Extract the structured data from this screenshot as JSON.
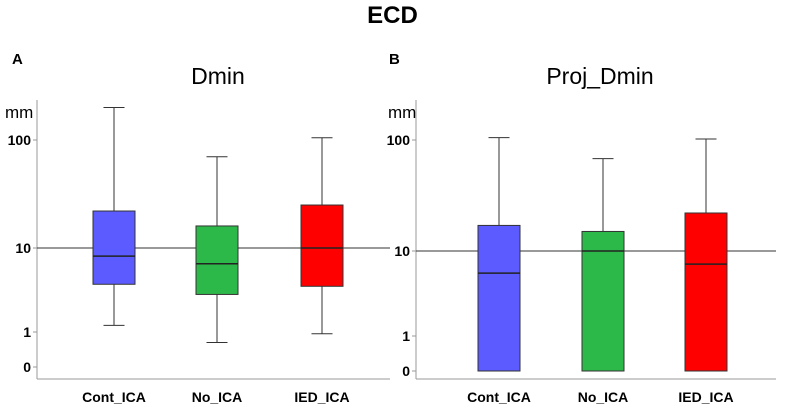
{
  "figure_title": "ECD",
  "chart_data": [
    {
      "panel": "A",
      "type": "box",
      "title": "Dmin",
      "ylabel": "mm",
      "xlabel": "",
      "yscale": "log",
      "y_tick_labels": [
        "100",
        "10",
        "1",
        "0"
      ],
      "y_tick_values": [
        100,
        10,
        1,
        0
      ],
      "reference_line": 10,
      "categories": [
        "Cont_ICA",
        "No_ICA",
        "IED_ICA"
      ],
      "boxes": [
        {
          "name": "Cont_ICA",
          "color": "#5b5bff",
          "whisker_low": 1.2,
          "q1": 3.7,
          "median": 8,
          "q3": 22,
          "whisker_high": 200
        },
        {
          "name": "No_ICA",
          "color": "#2db84a",
          "whisker_low": 0.7,
          "q1": 2.8,
          "median": 6.5,
          "q3": 16,
          "whisker_high": 70
        },
        {
          "name": "IED_ICA",
          "color": "#ff0000",
          "whisker_low": 0.95,
          "q1": 3.5,
          "median": 10,
          "q3": 25,
          "whisker_high": 105
        }
      ]
    },
    {
      "panel": "B",
      "type": "box",
      "title": "Proj_Dmin",
      "ylabel": "mm",
      "xlabel": "",
      "yscale": "log",
      "y_tick_labels": [
        "100",
        "10",
        "1",
        "0"
      ],
      "y_tick_values": [
        100,
        10,
        1,
        0
      ],
      "reference_line": 10,
      "categories": [
        "Cont_ICA",
        "No_ICA",
        "IED_ICA"
      ],
      "boxes": [
        {
          "name": "Cont_ICA",
          "color": "#5b5bff",
          "whisker_low": 0,
          "q1": 0,
          "median": 5.5,
          "q3": 17,
          "whisker_high": 105
        },
        {
          "name": "No_ICA",
          "color": "#2db84a",
          "whisker_low": 0,
          "q1": 0,
          "median": 10,
          "q3": 15,
          "whisker_high": 68
        },
        {
          "name": "IED_ICA",
          "color": "#ff0000",
          "whisker_low": 0,
          "q1": 0,
          "median": 7,
          "q3": 22,
          "whisker_high": 102
        }
      ]
    }
  ]
}
